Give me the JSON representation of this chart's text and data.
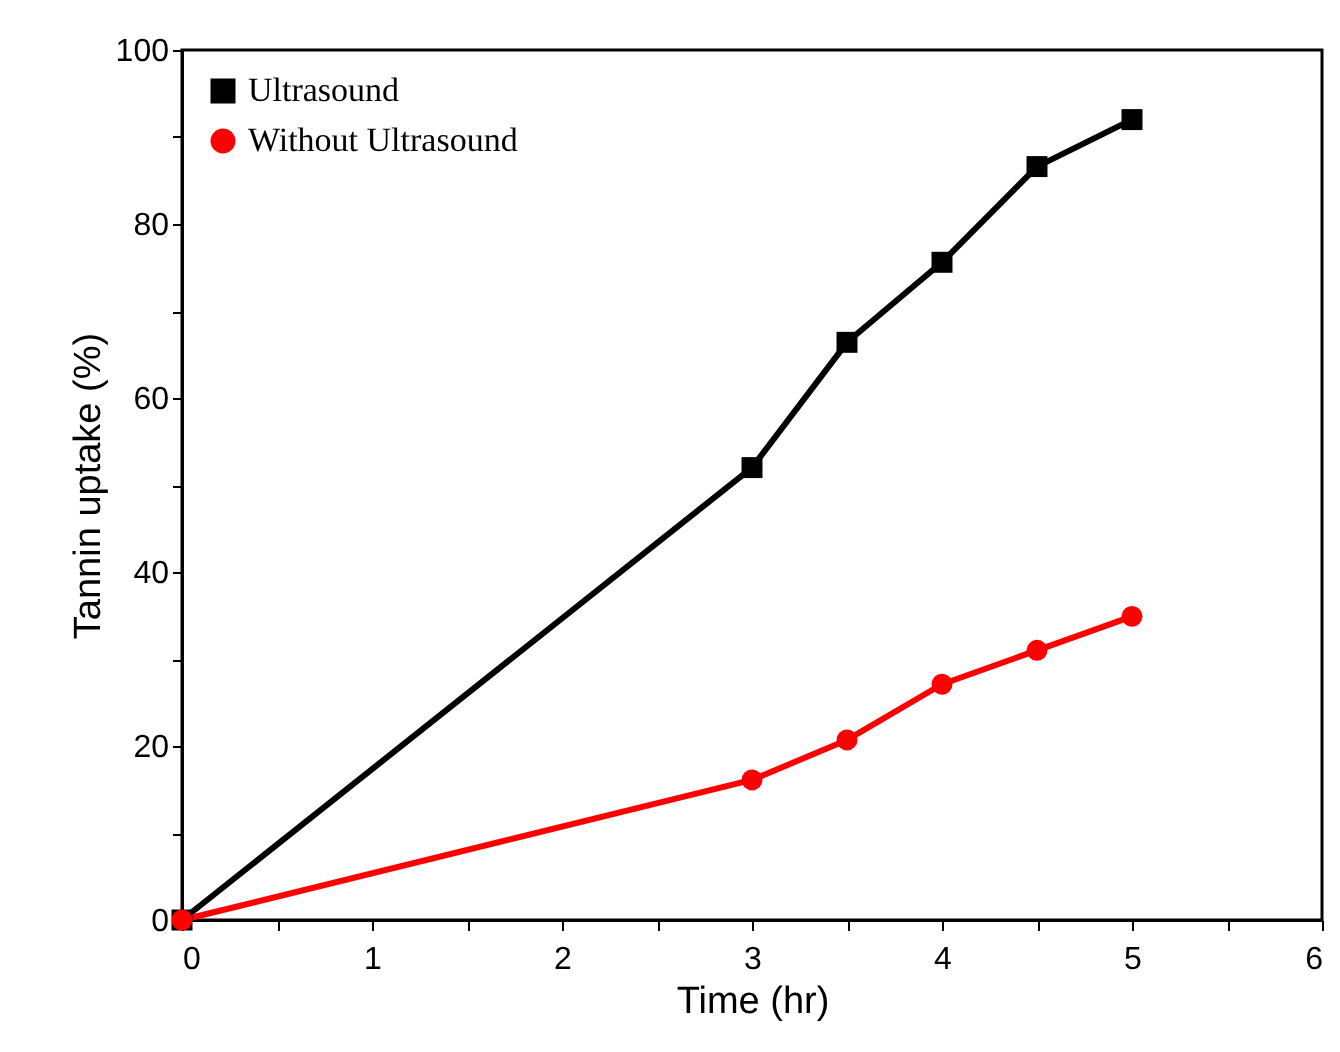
{
  "chart_data": {
    "type": "line",
    "xlabel": "Time (hr)",
    "ylabel": "Tannin uptake (%)",
    "xlim": [
      0,
      6
    ],
    "ylim": [
      0,
      100
    ],
    "xticks": [
      0,
      {
        "value": 0.5,
        "label": null
      },
      1,
      {
        "value": 1.5,
        "label": null
      },
      2,
      {
        "value": 2.5,
        "label": null
      },
      3,
      {
        "value": 3.5,
        "label": null
      },
      4,
      {
        "value": 4.5,
        "label": null
      },
      5,
      {
        "value": 5.5,
        "label": null
      },
      6
    ],
    "yticks": [
      0,
      {
        "value": 10,
        "label": null
      },
      20,
      {
        "value": 30,
        "label": null
      },
      40,
      {
        "value": 50,
        "label": null
      },
      60,
      {
        "value": 70,
        "label": null
      },
      80,
      {
        "value": 90,
        "label": null
      },
      100
    ],
    "x": [
      0,
      3,
      3.5,
      4,
      4.5,
      5
    ],
    "series": [
      {
        "name": "Ultrasound",
        "color": "#000000",
        "marker": "square",
        "line_style": "solid",
        "values": [
          0,
          52,
          66.4,
          75.6,
          86.6,
          92
        ]
      },
      {
        "name": "Without Ultrasound",
        "color": "#ff0000",
        "marker": "circle",
        "line_style": "solid",
        "values": [
          0,
          16.1,
          20.7,
          27.1,
          31,
          34.9
        ]
      }
    ],
    "legend": "top left",
    "grid": false
  }
}
